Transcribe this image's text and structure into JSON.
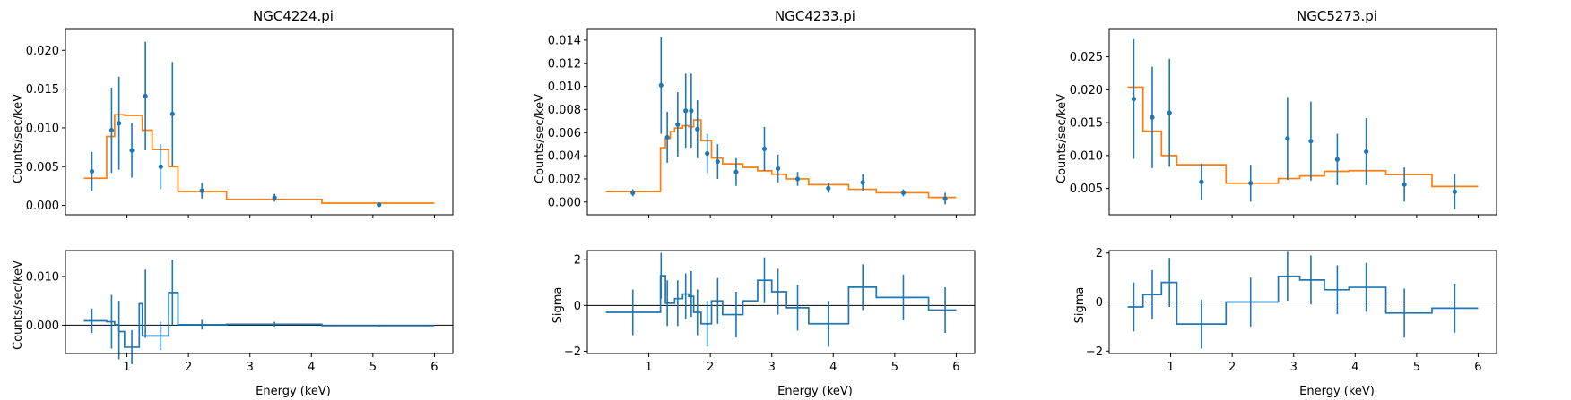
{
  "figure": {
    "colors": {
      "data": "#1f77b4",
      "model": "#ff7f0e",
      "axis": "#000000"
    },
    "panels": [
      {
        "title": "NGC4224.pi",
        "ylabel": "Counts/sec/keV",
        "resid_ylabel": "Counts/sec/keV",
        "xlabel": "Energy (keV)"
      },
      {
        "title": "NGC4233.pi",
        "ylabel": "Counts/sec/keV",
        "resid_ylabel": "Sigma",
        "xlabel": "Energy (keV)"
      },
      {
        "title": "NGC5273.pi",
        "ylabel": "Counts/sec/keV",
        "resid_ylabel": "Sigma",
        "xlabel": "Energy (keV)"
      }
    ]
  },
  "chart_data": [
    {
      "type": "scatter",
      "title": "NGC4224.pi",
      "xlabel": "Energy (keV)",
      "ylabel": "Counts/sec/keV",
      "xlim": [
        0.0,
        6.3
      ],
      "x_ticks": [
        1,
        2,
        3,
        4,
        5,
        6
      ],
      "x_tick_labels": [
        "1",
        "2",
        "3",
        "4",
        "5",
        "6"
      ],
      "main": {
        "ylim": [
          -0.0012,
          0.0228
        ],
        "y_ticks": [
          0.0,
          0.005,
          0.01,
          0.015,
          0.02
        ],
        "y_tick_labels": [
          "0.000",
          "0.005",
          "0.010",
          "0.015",
          "0.020"
        ],
        "data_points": [
          {
            "x": 0.43,
            "y": 0.0044,
            "err": 0.0025
          },
          {
            "x": 0.75,
            "y": 0.0097,
            "err": 0.0055
          },
          {
            "x": 0.87,
            "y": 0.0106,
            "err": 0.006
          },
          {
            "x": 1.08,
            "y": 0.0071,
            "err": 0.0035
          },
          {
            "x": 1.3,
            "y": 0.0141,
            "err": 0.007
          },
          {
            "x": 1.55,
            "y": 0.005,
            "err": 0.0029
          },
          {
            "x": 1.74,
            "y": 0.0118,
            "err": 0.0067
          },
          {
            "x": 2.22,
            "y": 0.0019,
            "err": 0.001
          },
          {
            "x": 3.4,
            "y": 0.001,
            "err": 0.0005
          },
          {
            "x": 5.1,
            "y": 0.0001,
            "err": 0.0002
          }
        ],
        "model_edges": [
          0.3,
          0.67,
          0.8,
          0.96,
          1.25,
          1.41,
          1.68,
          1.83,
          2.62,
          4.17,
          6.0
        ],
        "model_values": [
          0.0035,
          0.0089,
          0.0117,
          0.0116,
          0.0097,
          0.0072,
          0.005,
          0.0018,
          0.0008,
          0.0003
        ]
      },
      "residual": {
        "ylabel": "Counts/sec/keV",
        "ylim": [
          -0.0058,
          0.0153
        ],
        "y_ticks": [
          0.0,
          0.01
        ],
        "y_tick_labels": [
          "0.000",
          "0.010"
        ],
        "zero_line": 0.0,
        "edges": [
          0.3,
          0.67,
          0.8,
          0.87,
          0.96,
          1.2,
          1.25,
          1.41,
          1.68,
          1.83,
          2.62,
          4.17,
          6.0
        ],
        "values": [
          0.0009,
          0.0007,
          0.0001,
          -0.0013,
          -0.0045,
          0.0044,
          -0.0022,
          -0.0022,
          0.0067,
          0.0001,
          0.0002,
          -0.0001
        ],
        "points": [
          {
            "x": 0.43,
            "y": 0.0009,
            "err": 0.0025
          },
          {
            "x": 0.75,
            "y": 0.0007,
            "err": 0.0055
          },
          {
            "x": 0.87,
            "y": -0.001,
            "err": 0.006
          },
          {
            "x": 1.08,
            "y": -0.0045,
            "err": 0.0035
          },
          {
            "x": 1.3,
            "y": 0.0044,
            "err": 0.007
          },
          {
            "x": 1.55,
            "y": -0.0022,
            "err": 0.0029
          },
          {
            "x": 1.74,
            "y": 0.0067,
            "err": 0.0067
          },
          {
            "x": 2.22,
            "y": 0.0001,
            "err": 0.001
          },
          {
            "x": 3.4,
            "y": 0.0002,
            "err": 0.0005
          },
          {
            "x": 5.1,
            "y": -0.0001,
            "err": 0.0002
          }
        ]
      }
    },
    {
      "type": "scatter",
      "title": "NGC4233.pi",
      "xlabel": "Energy (keV)",
      "ylabel": "Counts/sec/keV",
      "xlim": [
        0.0,
        6.3
      ],
      "x_ticks": [
        1,
        2,
        3,
        4,
        5,
        6
      ],
      "x_tick_labels": [
        "1",
        "2",
        "3",
        "4",
        "5",
        "6"
      ],
      "main": {
        "ylim": [
          -0.0011,
          0.015
        ],
        "y_ticks": [
          0.0,
          0.002,
          0.004,
          0.006,
          0.008,
          0.01,
          0.012,
          0.014
        ],
        "y_tick_labels": [
          "0.000",
          "0.002",
          "0.004",
          "0.006",
          "0.008",
          "0.010",
          "0.012",
          "0.014"
        ],
        "data_points": [
          {
            "x": 0.74,
            "y": 0.0008,
            "err": 0.0003
          },
          {
            "x": 1.2,
            "y": 0.0101,
            "err": 0.0042
          },
          {
            "x": 1.3,
            "y": 0.0056,
            "err": 0.0022
          },
          {
            "x": 1.47,
            "y": 0.0067,
            "err": 0.0028
          },
          {
            "x": 1.6,
            "y": 0.0079,
            "err": 0.0032
          },
          {
            "x": 1.69,
            "y": 0.0079,
            "err": 0.0032
          },
          {
            "x": 1.79,
            "y": 0.0063,
            "err": 0.0025
          },
          {
            "x": 1.95,
            "y": 0.0042,
            "err": 0.0017
          },
          {
            "x": 2.12,
            "y": 0.0035,
            "err": 0.0015
          },
          {
            "x": 2.42,
            "y": 0.0026,
            "err": 0.0012
          },
          {
            "x": 2.88,
            "y": 0.0046,
            "err": 0.0019
          },
          {
            "x": 3.1,
            "y": 0.0029,
            "err": 0.0012
          },
          {
            "x": 3.42,
            "y": 0.002,
            "err": 0.0006
          },
          {
            "x": 3.92,
            "y": 0.0012,
            "err": 0.0004
          },
          {
            "x": 4.48,
            "y": 0.0017,
            "err": 0.0007
          },
          {
            "x": 5.14,
            "y": 0.0008,
            "err": 0.0003
          },
          {
            "x": 5.82,
            "y": 0.0003,
            "err": 0.0005
          }
        ],
        "model_edges": [
          0.3,
          1.19,
          1.27,
          1.35,
          1.42,
          1.55,
          1.65,
          1.73,
          1.85,
          2.02,
          2.2,
          2.53,
          2.77,
          3.0,
          3.24,
          3.6,
          4.25,
          4.7,
          5.55,
          6.0
        ],
        "model_values": [
          0.0009,
          0.0047,
          0.0055,
          0.0061,
          0.0064,
          0.0066,
          0.0065,
          0.0071,
          0.0053,
          0.0038,
          0.0033,
          0.003,
          0.0027,
          0.0024,
          0.002,
          0.0015,
          0.0011,
          0.0008,
          0.0004
        ]
      },
      "residual": {
        "ylabel": "Sigma",
        "ylim": [
          -2.1,
          2.4
        ],
        "y_ticks": [
          -2,
          0,
          2
        ],
        "y_tick_labels": [
          "−2",
          "0",
          "2"
        ],
        "zero_line": 0,
        "edges": [
          0.3,
          1.19,
          1.27,
          1.35,
          1.42,
          1.55,
          1.65,
          1.73,
          1.85,
          2.02,
          2.2,
          2.53,
          2.77,
          3.0,
          3.24,
          3.6,
          4.25,
          4.7,
          5.55,
          6.0
        ],
        "values": [
          -0.3,
          1.3,
          0.1,
          0.1,
          0.3,
          0.5,
          0.4,
          -0.3,
          -0.8,
          0.2,
          -0.4,
          0.2,
          1.1,
          0.6,
          -0.1,
          -0.8,
          0.8,
          0.35,
          -0.2
        ],
        "points": [
          {
            "x": 0.74,
            "y": -0.3,
            "err": 1.0
          },
          {
            "x": 1.2,
            "y": 1.3,
            "err": 1.0
          },
          {
            "x": 1.3,
            "y": 0.1,
            "err": 1.0
          },
          {
            "x": 1.47,
            "y": 0.1,
            "err": 1.0
          },
          {
            "x": 1.6,
            "y": 0.4,
            "err": 1.0
          },
          {
            "x": 1.69,
            "y": 0.5,
            "err": 1.0
          },
          {
            "x": 1.79,
            "y": -0.3,
            "err": 1.0
          },
          {
            "x": 1.95,
            "y": -0.8,
            "err": 1.0
          },
          {
            "x": 2.12,
            "y": 0.2,
            "err": 1.0
          },
          {
            "x": 2.42,
            "y": -0.4,
            "err": 1.0
          },
          {
            "x": 2.88,
            "y": 1.1,
            "err": 1.0
          },
          {
            "x": 3.1,
            "y": 0.6,
            "err": 1.0
          },
          {
            "x": 3.42,
            "y": -0.1,
            "err": 1.0
          },
          {
            "x": 3.92,
            "y": -0.8,
            "err": 1.0
          },
          {
            "x": 4.48,
            "y": 0.8,
            "err": 1.0
          },
          {
            "x": 5.14,
            "y": 0.35,
            "err": 1.0
          },
          {
            "x": 5.82,
            "y": -0.2,
            "err": 1.0
          }
        ]
      }
    },
    {
      "type": "scatter",
      "title": "NGC5273.pi",
      "xlabel": "Energy (keV)",
      "ylabel": "Counts/sec/keV",
      "xlim": [
        0.0,
        6.3
      ],
      "x_ticks": [
        1,
        2,
        3,
        4,
        5,
        6
      ],
      "x_tick_labels": [
        "1",
        "2",
        "3",
        "4",
        "5",
        "6"
      ],
      "main": {
        "ylim": [
          0.001,
          0.0293
        ],
        "y_ticks": [
          0.005,
          0.01,
          0.015,
          0.02,
          0.025
        ],
        "y_tick_labels": [
          "0.005",
          "0.010",
          "0.015",
          "0.020",
          "0.025"
        ],
        "data_points": [
          {
            "x": 0.4,
            "y": 0.0186,
            "err": 0.0091
          },
          {
            "x": 0.7,
            "y": 0.0158,
            "err": 0.0077
          },
          {
            "x": 0.98,
            "y": 0.0165,
            "err": 0.0082
          },
          {
            "x": 1.5,
            "y": 0.006,
            "err": 0.0028
          },
          {
            "x": 2.3,
            "y": 0.0058,
            "err": 0.0028
          },
          {
            "x": 2.9,
            "y": 0.0126,
            "err": 0.0063
          },
          {
            "x": 3.28,
            "y": 0.0122,
            "err": 0.006
          },
          {
            "x": 3.71,
            "y": 0.0094,
            "err": 0.0039
          },
          {
            "x": 4.18,
            "y": 0.0106,
            "err": 0.0051
          },
          {
            "x": 4.8,
            "y": 0.0056,
            "err": 0.0026
          },
          {
            "x": 5.62,
            "y": 0.0045,
            "err": 0.0027
          }
        ],
        "model_edges": [
          0.3,
          0.55,
          0.85,
          1.1,
          1.9,
          2.75,
          3.1,
          3.5,
          3.9,
          4.5,
          5.25,
          6.0
        ],
        "model_values": [
          0.0204,
          0.0137,
          0.01,
          0.0086,
          0.0058,
          0.0065,
          0.0069,
          0.0076,
          0.0077,
          0.0071,
          0.0053
        ]
      },
      "residual": {
        "ylabel": "Sigma",
        "ylim": [
          -2.1,
          2.1
        ],
        "y_ticks": [
          -2,
          0,
          2
        ],
        "y_tick_labels": [
          "−2",
          "0",
          "2"
        ],
        "zero_line": 0,
        "edges": [
          0.3,
          0.55,
          0.85,
          1.1,
          1.9,
          2.75,
          3.1,
          3.5,
          3.9,
          4.5,
          5.25,
          6.0
        ],
        "values": [
          -0.2,
          0.3,
          0.8,
          -0.9,
          0.0,
          1.05,
          0.9,
          0.5,
          0.6,
          -0.45,
          -0.25
        ],
        "points": [
          {
            "x": 0.4,
            "y": -0.2,
            "err": 1.0
          },
          {
            "x": 0.7,
            "y": 0.3,
            "err": 1.0
          },
          {
            "x": 0.98,
            "y": 0.8,
            "err": 1.0
          },
          {
            "x": 1.5,
            "y": -0.9,
            "err": 1.0
          },
          {
            "x": 2.3,
            "y": 0.0,
            "err": 1.0
          },
          {
            "x": 2.9,
            "y": 1.05,
            "err": 1.0
          },
          {
            "x": 3.28,
            "y": 0.9,
            "err": 1.0
          },
          {
            "x": 3.71,
            "y": 0.5,
            "err": 1.0
          },
          {
            "x": 4.18,
            "y": 0.6,
            "err": 1.0
          },
          {
            "x": 4.8,
            "y": -0.45,
            "err": 1.0
          },
          {
            "x": 5.62,
            "y": -0.25,
            "err": 1.0
          }
        ]
      }
    }
  ]
}
